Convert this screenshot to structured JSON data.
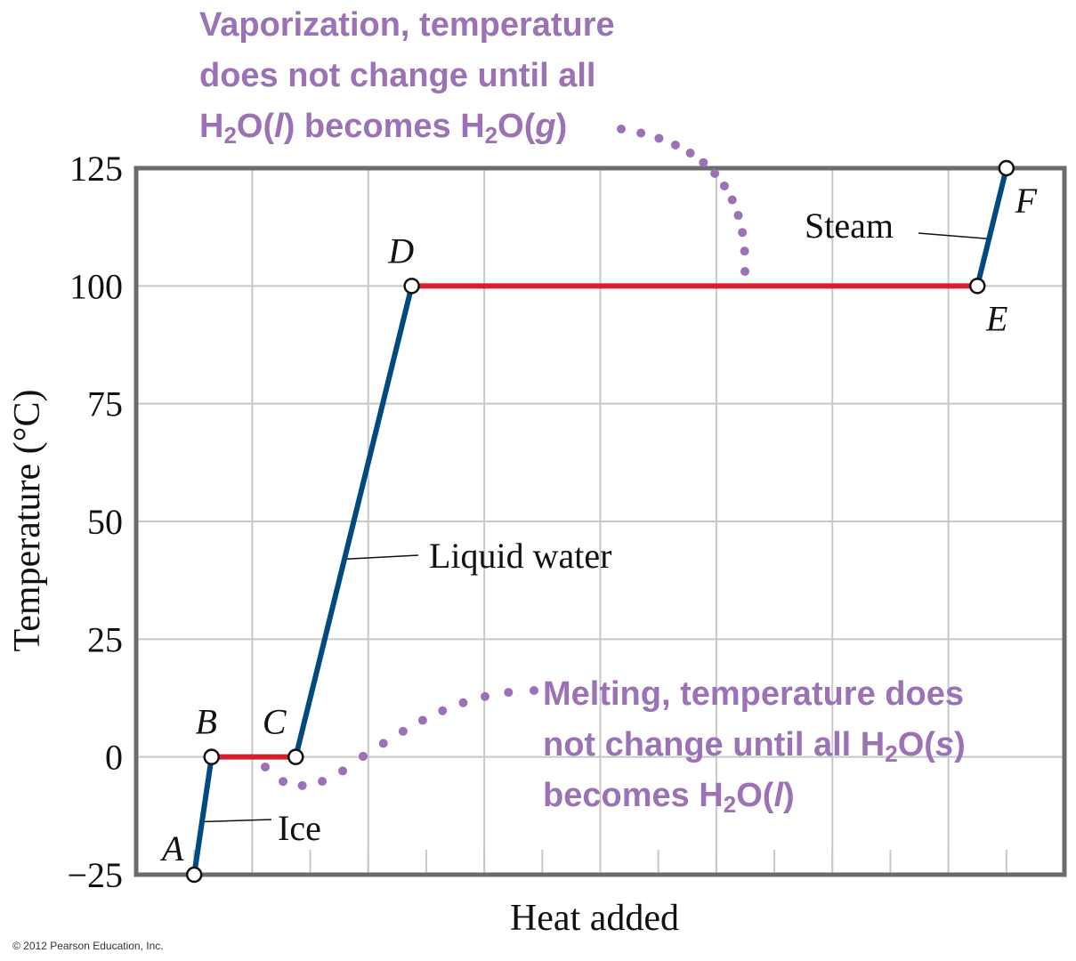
{
  "chart_data": {
    "type": "line",
    "xlabel": "Heat added",
    "ylabel": "Temperature (°C)",
    "ylim": [
      -25,
      125
    ],
    "yticks": [
      "125",
      "100",
      "75",
      "50",
      "25",
      "0",
      "−25"
    ],
    "x_ticks_labeled": false,
    "grid": true,
    "points": [
      {
        "name": "A",
        "x": 1.0,
        "y": -25
      },
      {
        "name": "B",
        "x": 1.3,
        "y": 0
      },
      {
        "name": "C",
        "x": 2.75,
        "y": 0
      },
      {
        "name": "D",
        "x": 4.75,
        "y": 100
      },
      {
        "name": "E",
        "x": 14.5,
        "y": 100
      },
      {
        "name": "F",
        "x": 15.0,
        "y": 125
      }
    ],
    "segments": [
      {
        "from": "A",
        "to": "B",
        "phase": "heating",
        "label": "Ice"
      },
      {
        "from": "B",
        "to": "C",
        "phase": "melting",
        "label": ""
      },
      {
        "from": "C",
        "to": "D",
        "phase": "heating",
        "label": "Liquid water"
      },
      {
        "from": "D",
        "to": "E",
        "phase": "vaporization",
        "label": ""
      },
      {
        "from": "E",
        "to": "F",
        "phase": "heating",
        "label": "Steam"
      }
    ],
    "annotations": [
      {
        "id": "vaporization",
        "lines": [
          [
            "Vaporization, temperature"
          ],
          [
            "does not change until all"
          ],
          [
            "H",
            {
              "sub": "2"
            },
            "O(",
            {
              "i": "l"
            },
            ") becomes H",
            {
              "sub": "2"
            },
            "O(",
            {
              "i": "g"
            },
            ")"
          ]
        ]
      },
      {
        "id": "melting",
        "lines": [
          [
            "Melting, temperature does"
          ],
          [
            "not change until all H",
            {
              "sub": "2"
            },
            "O(",
            {
              "i": "s"
            },
            ")"
          ],
          [
            "becomes H",
            {
              "sub": "2"
            },
            "O(",
            {
              "i": "l"
            },
            ")"
          ]
        ]
      }
    ],
    "colors": {
      "heating": "#004a80",
      "phase_change": "#d3202e",
      "annotation": "#9b72b5",
      "grid": "#c8c8c8",
      "frame": "#6b6b6b"
    }
  },
  "copyright": "© 2012 Pearson Education, Inc."
}
